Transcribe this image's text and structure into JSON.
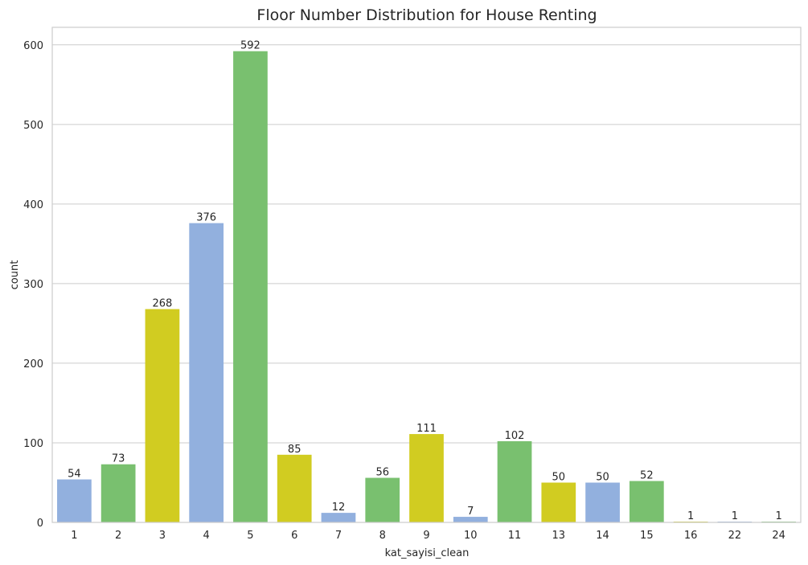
{
  "chart_data": {
    "type": "bar",
    "title": "Floor Number Distribution for House Renting",
    "xlabel": "kat_sayisi_clean",
    "ylabel": "count",
    "categories": [
      "1",
      "2",
      "3",
      "4",
      "5",
      "6",
      "7",
      "8",
      "9",
      "10",
      "11",
      "13",
      "14",
      "15",
      "16",
      "22",
      "24"
    ],
    "values": [
      54,
      73,
      268,
      376,
      592,
      85,
      12,
      56,
      111,
      7,
      102,
      50,
      50,
      52,
      1,
      1,
      1
    ],
    "bar_colors": [
      "#92b0de",
      "#79c06f",
      "#d1cc21",
      "#92b0de",
      "#79c06f",
      "#d1cc21",
      "#92b0de",
      "#79c06f",
      "#d1cc21",
      "#92b0de",
      "#79c06f",
      "#d1cc21",
      "#92b0de",
      "#79c06f",
      "#d1cc21",
      "#92b0de",
      "#79c06f"
    ],
    "ylim": [
      0,
      622
    ],
    "yticks": [
      0,
      100,
      200,
      300,
      400,
      500,
      600
    ],
    "grid": true,
    "grid_axis": "y",
    "data_labels": true,
    "legend": false
  }
}
